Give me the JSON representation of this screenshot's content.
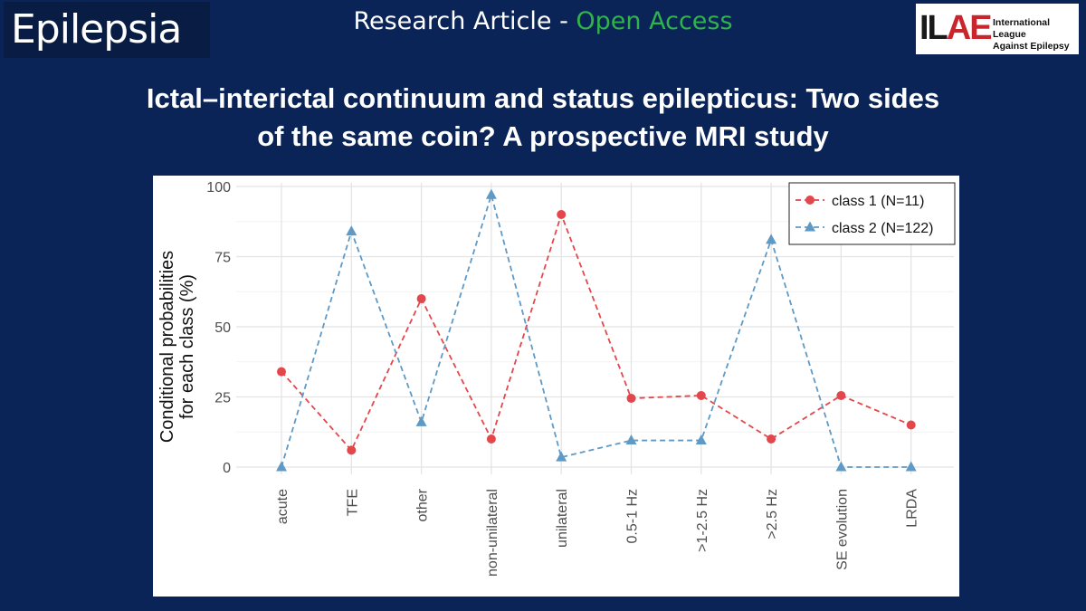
{
  "header": {
    "journal_logo": "Epilepsia",
    "article_type": "Research Article - ",
    "access": "Open Access",
    "org_logo_mark": "ILAE",
    "org_name_line1": "International League",
    "org_name_line2": "Against Epilepsy"
  },
  "title_line1": "Ictal–interictal continuum and status epilepticus: Two sides",
  "title_line2": "of the same coin? A prospective MRI study",
  "colors": {
    "class1": "#e3474b",
    "class2": "#5f9ac6",
    "accent_green": "#2fb34a",
    "background": "#0b2457"
  },
  "chart_data": {
    "type": "line",
    "categories": [
      "acute",
      "TFE",
      "other",
      "non-unilateral",
      "unilateral",
      "0.5-1 Hz",
      ">1-2.5 Hz",
      ">2.5 Hz",
      "SE evolution",
      "LRDA"
    ],
    "series": [
      {
        "name": "class 1 (N=11)",
        "marker": "circle",
        "values": [
          34,
          6,
          60,
          10,
          90,
          24.5,
          25.5,
          10,
          25.5,
          15
        ]
      },
      {
        "name": "class 2 (N=122)",
        "marker": "triangle",
        "values": [
          0,
          84,
          16,
          97,
          3.5,
          9.5,
          9.5,
          81,
          0,
          0
        ]
      }
    ],
    "ylabel_line1": "Conditional probabilities",
    "ylabel_line2": "for each class (%)",
    "yticks": [
      0,
      25,
      50,
      75,
      100
    ],
    "ylim": [
      0,
      100
    ],
    "legend_position": "top-right",
    "line_style": "dashed",
    "grid": true
  }
}
